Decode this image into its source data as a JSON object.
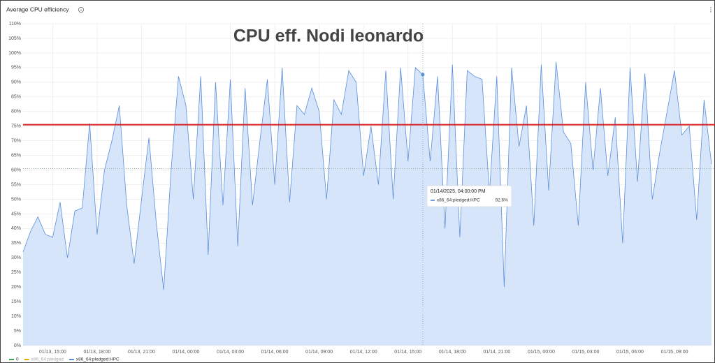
{
  "chart_data": {
    "type": "area",
    "title": "Average CPU efficiency",
    "annotation": "CPU eff. Nodi leonardo",
    "x": [
      "2025-01-13T13:00",
      "2025-01-13T13:30",
      "2025-01-13T14:00",
      "2025-01-13T14:30",
      "2025-01-13T15:00",
      "2025-01-13T15:30",
      "2025-01-13T16:00",
      "2025-01-13T16:30",
      "2025-01-13T17:00",
      "2025-01-13T17:30",
      "2025-01-13T18:00",
      "2025-01-13T18:30",
      "2025-01-13T19:00",
      "2025-01-13T19:30",
      "2025-01-13T20:00",
      "2025-01-13T20:30",
      "2025-01-13T21:00",
      "2025-01-13T21:30",
      "2025-01-13T22:00",
      "2025-01-13T22:30",
      "2025-01-13T23:00",
      "2025-01-13T23:30",
      "2025-01-14T00:00",
      "2025-01-14T00:30",
      "2025-01-14T01:00",
      "2025-01-14T01:30",
      "2025-01-14T02:00",
      "2025-01-14T02:30",
      "2025-01-14T03:00",
      "2025-01-14T03:30",
      "2025-01-14T04:00",
      "2025-01-14T04:30",
      "2025-01-14T05:00",
      "2025-01-14T05:30",
      "2025-01-14T06:00",
      "2025-01-14T06:30",
      "2025-01-14T07:00",
      "2025-01-14T07:30",
      "2025-01-14T08:00",
      "2025-01-14T08:30",
      "2025-01-14T09:00",
      "2025-01-14T09:30",
      "2025-01-14T10:00",
      "2025-01-14T10:30",
      "2025-01-14T11:00",
      "2025-01-14T11:30",
      "2025-01-14T12:00",
      "2025-01-14T12:30",
      "2025-01-14T13:00",
      "2025-01-14T13:30",
      "2025-01-14T14:00",
      "2025-01-14T14:30",
      "2025-01-14T15:00",
      "2025-01-14T15:30",
      "2025-01-14T16:00",
      "2025-01-14T16:30",
      "2025-01-14T17:00",
      "2025-01-14T17:30",
      "2025-01-14T18:00",
      "2025-01-14T18:30",
      "2025-01-14T19:00",
      "2025-01-14T19:30",
      "2025-01-14T20:00",
      "2025-01-14T20:30",
      "2025-01-14T21:00",
      "2025-01-14T21:30",
      "2025-01-14T22:00",
      "2025-01-14T22:30",
      "2025-01-14T23:00",
      "2025-01-14T23:30",
      "2025-01-15T00:00",
      "2025-01-15T00:30",
      "2025-01-15T01:00",
      "2025-01-15T01:30",
      "2025-01-15T02:00",
      "2025-01-15T02:30",
      "2025-01-15T03:00",
      "2025-01-15T03:30",
      "2025-01-15T04:00",
      "2025-01-15T04:30",
      "2025-01-15T05:00",
      "2025-01-15T05:30",
      "2025-01-15T06:00",
      "2025-01-15T06:30",
      "2025-01-15T07:00",
      "2025-01-15T07:30",
      "2025-01-15T08:00",
      "2025-01-15T08:30",
      "2025-01-15T09:00",
      "2025-01-15T09:30",
      "2025-01-15T10:00",
      "2025-01-15T10:30",
      "2025-01-15T11:00",
      "2025-01-15T11:30"
    ],
    "series": [
      {
        "name": "x86_64:pledged:HPC",
        "color": "#5b8fd9",
        "fill": "#d6e5fa",
        "values": [
          32,
          39,
          44,
          38,
          37,
          49,
          30,
          46,
          47,
          76,
          38,
          60,
          70,
          82,
          48,
          28,
          50,
          71,
          42,
          19,
          60,
          92,
          82,
          50,
          92,
          31,
          90,
          48,
          91,
          34,
          88,
          48,
          70,
          91,
          55,
          95,
          49,
          82,
          79,
          88,
          80,
          50,
          84,
          79,
          94,
          90,
          58,
          75,
          55,
          94,
          50,
          95,
          63,
          95,
          92.6,
          63,
          92,
          40,
          96,
          37,
          94,
          92,
          91,
          52,
          92,
          20,
          95,
          68,
          82,
          41,
          96,
          53,
          97,
          73,
          69,
          41,
          90,
          60,
          88,
          58,
          78,
          35,
          95,
          56,
          93,
          50,
          66,
          80,
          94,
          72,
          75,
          43,
          84,
          62
        ]
      }
    ],
    "legend": [
      {
        "name": "0",
        "color": "#3fa34d"
      },
      {
        "name": "x86_64:pledged",
        "color": "#e5b200"
      },
      {
        "name": "x86_64:pledged:HPC",
        "color": "#5b8fd9"
      }
    ],
    "reference_lines": [
      {
        "value": 75.5,
        "color": "#d61f1f",
        "style": "solid"
      },
      {
        "value": 60.5,
        "color": "#8fb0a0",
        "style": "dotted"
      }
    ],
    "tooltip": {
      "series": 0,
      "point": 54,
      "time_label": "01/14/2025, 04:00:00 PM",
      "value_label": "92.6%"
    },
    "xlim": [
      "2025-01-13T13:00",
      "2025-01-15T11:30"
    ],
    "xticks": [
      {
        "value": "2025-01-13T15:00",
        "label": "01/13, 15:00"
      },
      {
        "value": "2025-01-13T18:00",
        "label": "01/13, 18:00"
      },
      {
        "value": "2025-01-13T21:00",
        "label": "01/13, 21:00"
      },
      {
        "value": "2025-01-14T00:00",
        "label": "01/14, 00:00"
      },
      {
        "value": "2025-01-14T03:00",
        "label": "01/14, 03:00"
      },
      {
        "value": "2025-01-14T06:00",
        "label": "01/14, 06:00"
      },
      {
        "value": "2025-01-14T09:00",
        "label": "01/14, 09:00"
      },
      {
        "value": "2025-01-14T12:00",
        "label": "01/14, 12:00"
      },
      {
        "value": "2025-01-14T15:00",
        "label": "01/14, 15:00"
      },
      {
        "value": "2025-01-14T18:00",
        "label": "01/14, 18:00"
      },
      {
        "value": "2025-01-14T21:00",
        "label": "01/14, 21:00"
      },
      {
        "value": "2025-01-15T00:00",
        "label": "01/15, 00:00"
      },
      {
        "value": "2025-01-15T03:00",
        "label": "01/15, 03:00"
      },
      {
        "value": "2025-01-15T06:00",
        "label": "01/15, 06:00"
      },
      {
        "value": "2025-01-15T09:00",
        "label": "01/15, 09:00"
      }
    ],
    "ylim": [
      0,
      110
    ],
    "yticks": [
      {
        "value": 0,
        "label": "0%"
      },
      {
        "value": 5,
        "label": "5%"
      },
      {
        "value": 10,
        "label": "10%"
      },
      {
        "value": 15,
        "label": "15%"
      },
      {
        "value": 20,
        "label": "20%"
      },
      {
        "value": 25,
        "label": "25%"
      },
      {
        "value": 30,
        "label": "30%"
      },
      {
        "value": 35,
        "label": "35%"
      },
      {
        "value": 40,
        "label": "40%"
      },
      {
        "value": 45,
        "label": "45%"
      },
      {
        "value": 50,
        "label": "50%"
      },
      {
        "value": 55,
        "label": "55%"
      },
      {
        "value": 60,
        "label": "60%"
      },
      {
        "value": 65,
        "label": "65%"
      },
      {
        "value": 70,
        "label": "70%"
      },
      {
        "value": 75,
        "label": "75%"
      },
      {
        "value": 80,
        "label": "80%"
      },
      {
        "value": 85,
        "label": "85%"
      },
      {
        "value": 90,
        "label": "90%"
      },
      {
        "value": 95,
        "label": "95%"
      },
      {
        "value": 100,
        "label": "100%"
      },
      {
        "value": 105,
        "label": "105%"
      },
      {
        "value": 110,
        "label": "110%"
      }
    ],
    "grid": true
  }
}
